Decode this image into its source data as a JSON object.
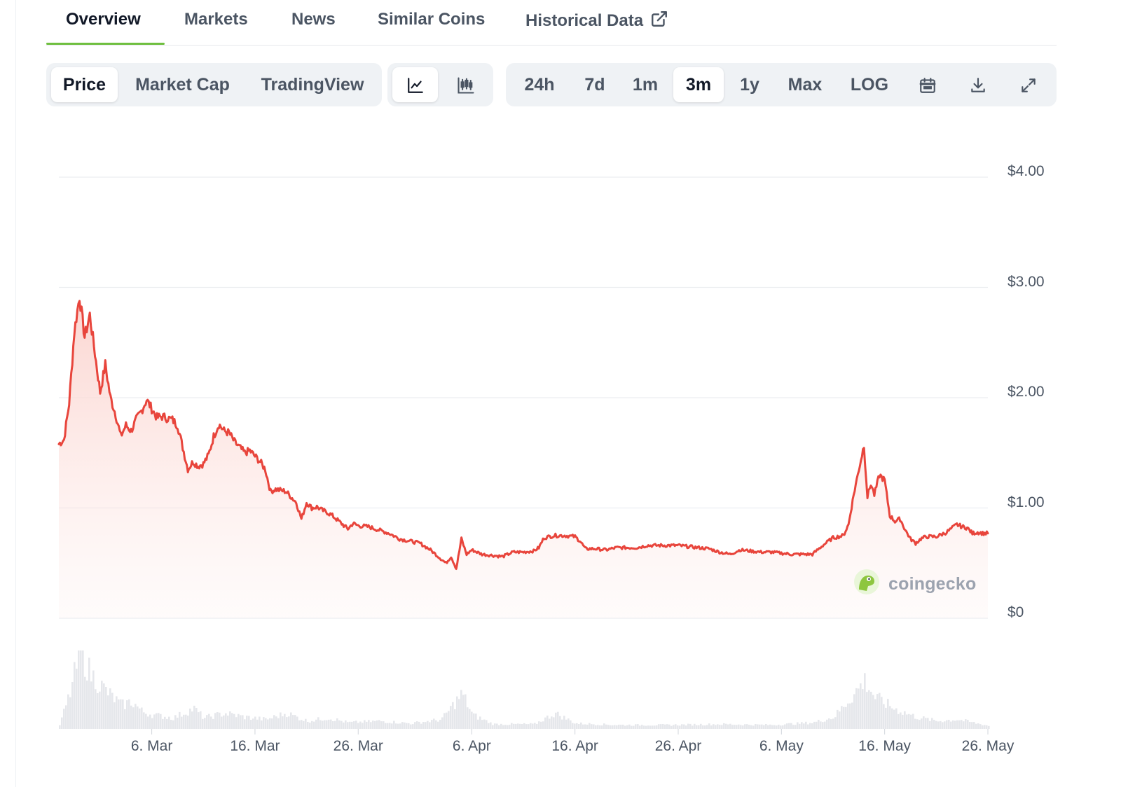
{
  "tabs": [
    {
      "label": "Overview",
      "active": true
    },
    {
      "label": "Markets"
    },
    {
      "label": "News"
    },
    {
      "label": "Similar Coins"
    },
    {
      "label": "Historical Data",
      "icon": "external-link-icon"
    }
  ],
  "toolbar": {
    "metrics": [
      {
        "label": "Price",
        "active": true
      },
      {
        "label": "Market Cap"
      },
      {
        "label": "TradingView"
      }
    ],
    "chart_types": [
      {
        "icon": "line-chart-icon",
        "active": true
      },
      {
        "icon": "candlestick-icon"
      }
    ],
    "ranges": [
      {
        "label": "24h"
      },
      {
        "label": "7d"
      },
      {
        "label": "1m"
      },
      {
        "label": "3m",
        "active": true
      },
      {
        "label": "1y"
      },
      {
        "label": "Max"
      },
      {
        "label": "LOG"
      }
    ],
    "actions": [
      {
        "icon": "calendar-icon"
      },
      {
        "icon": "download-icon"
      },
      {
        "icon": "expand-icon"
      }
    ]
  },
  "watermark": "coingecko",
  "chart_data": {
    "type": "line",
    "line_color": "#e8453c",
    "fill_color": "#fde2df",
    "volume_color": "#e5e7eb",
    "ylim": [
      0,
      4.0
    ],
    "y_ticks": [
      "$4.00",
      "$3.00",
      "$2.00",
      "$1.00",
      "$0"
    ],
    "y_tick_values": [
      4,
      3,
      2,
      1,
      0
    ],
    "xlim": [
      "2024-02-26",
      "2024-05-26"
    ],
    "x_ticks": [
      "6. Mar",
      "16. Mar",
      "26. Mar",
      "6. Apr",
      "16. Apr",
      "26. Apr",
      "6. May",
      "16. May",
      "26. May"
    ],
    "x_tick_dates": [
      "2024-03-06",
      "2024-03-16",
      "2024-03-26",
      "2024-04-06",
      "2024-04-16",
      "2024-04-26",
      "2024-05-06",
      "2024-05-16",
      "2024-05-26"
    ],
    "grid": true,
    "price": [
      [
        "2024-02-26",
        1.58
      ],
      [
        "2024-02-26T12",
        1.62
      ],
      [
        "2024-02-27",
        1.95
      ],
      [
        "2024-02-27T12",
        2.6
      ],
      [
        "2024-02-28",
        2.92
      ],
      [
        "2024-02-28T12",
        2.55
      ],
      [
        "2024-02-29",
        2.75
      ],
      [
        "2024-02-29T12",
        2.4
      ],
      [
        "2024-03-01",
        2.05
      ],
      [
        "2024-03-01T12",
        2.3
      ],
      [
        "2024-03-02",
        2.0
      ],
      [
        "2024-03-02T12",
        1.85
      ],
      [
        "2024-03-03",
        1.65
      ],
      [
        "2024-03-03T12",
        1.75
      ],
      [
        "2024-03-04",
        1.7
      ],
      [
        "2024-03-04T12",
        1.8
      ],
      [
        "2024-03-05",
        1.88
      ],
      [
        "2024-03-05T12",
        1.98
      ],
      [
        "2024-03-06",
        1.9
      ],
      [
        "2024-03-06T12",
        1.82
      ],
      [
        "2024-03-07",
        1.83
      ],
      [
        "2024-03-08",
        1.8
      ],
      [
        "2024-03-08T12",
        1.75
      ],
      [
        "2024-03-09",
        1.55
      ],
      [
        "2024-03-09T12",
        1.35
      ],
      [
        "2024-03-10",
        1.42
      ],
      [
        "2024-03-10T12",
        1.38
      ],
      [
        "2024-03-11",
        1.4
      ],
      [
        "2024-03-11T12",
        1.48
      ],
      [
        "2024-03-12",
        1.65
      ],
      [
        "2024-03-12T12",
        1.76
      ],
      [
        "2024-03-13",
        1.7
      ],
      [
        "2024-03-13T12",
        1.68
      ],
      [
        "2024-03-14",
        1.6
      ],
      [
        "2024-03-14T12",
        1.55
      ],
      [
        "2024-03-15",
        1.5
      ],
      [
        "2024-03-15T12",
        1.52
      ],
      [
        "2024-03-16",
        1.47
      ],
      [
        "2024-03-16T12",
        1.42
      ],
      [
        "2024-03-17",
        1.35
      ],
      [
        "2024-03-17T12",
        1.15
      ],
      [
        "2024-03-18",
        1.17
      ],
      [
        "2024-03-19",
        1.15
      ],
      [
        "2024-03-19T12",
        1.1
      ],
      [
        "2024-03-20",
        1.05
      ],
      [
        "2024-03-20T12",
        0.9
      ],
      [
        "2024-03-21",
        1.05
      ],
      [
        "2024-03-21T12",
        1.0
      ],
      [
        "2024-03-22",
        1.01
      ],
      [
        "2024-03-22T12",
        0.98
      ],
      [
        "2024-03-23",
        0.96
      ],
      [
        "2024-03-23T12",
        0.93
      ],
      [
        "2024-03-24",
        0.89
      ],
      [
        "2024-03-24T12",
        0.85
      ],
      [
        "2024-03-25",
        0.81
      ],
      [
        "2024-03-25T12",
        0.86
      ],
      [
        "2024-03-26",
        0.84
      ],
      [
        "2024-03-27",
        0.83
      ],
      [
        "2024-03-28",
        0.8
      ],
      [
        "2024-03-29",
        0.77
      ],
      [
        "2024-03-30",
        0.72
      ],
      [
        "2024-03-31",
        0.7
      ],
      [
        "2024-04-01",
        0.68
      ],
      [
        "2024-04-02",
        0.62
      ],
      [
        "2024-04-03",
        0.54
      ],
      [
        "2024-04-03T12",
        0.5
      ],
      [
        "2024-04-04",
        0.56
      ],
      [
        "2024-04-04T12",
        0.45
      ],
      [
        "2024-04-05",
        0.72
      ],
      [
        "2024-04-05T12",
        0.58
      ],
      [
        "2024-04-06",
        0.62
      ],
      [
        "2024-04-06T12",
        0.6
      ],
      [
        "2024-04-07",
        0.58
      ],
      [
        "2024-04-08",
        0.57
      ],
      [
        "2024-04-09",
        0.56
      ],
      [
        "2024-04-10",
        0.6
      ],
      [
        "2024-04-11",
        0.6
      ],
      [
        "2024-04-12",
        0.61
      ],
      [
        "2024-04-12T12",
        0.64
      ],
      [
        "2024-04-13",
        0.73
      ],
      [
        "2024-04-14",
        0.75
      ],
      [
        "2024-04-15",
        0.75
      ],
      [
        "2024-04-16",
        0.74
      ],
      [
        "2024-04-16T12",
        0.7
      ],
      [
        "2024-04-17",
        0.63
      ],
      [
        "2024-04-18",
        0.63
      ],
      [
        "2024-04-19",
        0.62
      ],
      [
        "2024-04-20",
        0.64
      ],
      [
        "2024-04-21",
        0.64
      ],
      [
        "2024-04-22",
        0.64
      ],
      [
        "2024-04-23",
        0.66
      ],
      [
        "2024-04-24",
        0.66
      ],
      [
        "2024-04-25",
        0.66
      ],
      [
        "2024-04-26",
        0.66
      ],
      [
        "2024-04-27",
        0.65
      ],
      [
        "2024-04-28",
        0.64
      ],
      [
        "2024-04-29",
        0.63
      ],
      [
        "2024-04-30",
        0.6
      ],
      [
        "2024-05-01",
        0.58
      ],
      [
        "2024-05-02",
        0.62
      ],
      [
        "2024-05-03",
        0.61
      ],
      [
        "2024-05-04",
        0.6
      ],
      [
        "2024-05-05",
        0.6
      ],
      [
        "2024-05-06",
        0.59
      ],
      [
        "2024-05-07",
        0.58
      ],
      [
        "2024-05-08",
        0.58
      ],
      [
        "2024-05-09",
        0.58
      ],
      [
        "2024-05-10",
        0.66
      ],
      [
        "2024-05-11",
        0.73
      ],
      [
        "2024-05-12",
        0.75
      ],
      [
        "2024-05-12T12",
        0.85
      ],
      [
        "2024-05-13",
        1.12
      ],
      [
        "2024-05-13T12",
        1.35
      ],
      [
        "2024-05-14",
        1.57
      ],
      [
        "2024-05-14T08",
        1.1
      ],
      [
        "2024-05-14T16",
        1.22
      ],
      [
        "2024-05-15",
        1.12
      ],
      [
        "2024-05-15T12",
        1.3
      ],
      [
        "2024-05-16",
        1.25
      ],
      [
        "2024-05-16T12",
        0.93
      ],
      [
        "2024-05-17",
        0.88
      ],
      [
        "2024-05-17T12",
        0.9
      ],
      [
        "2024-05-18",
        0.8
      ],
      [
        "2024-05-18T12",
        0.72
      ],
      [
        "2024-05-19",
        0.68
      ],
      [
        "2024-05-19T12",
        0.72
      ],
      [
        "2024-05-20",
        0.74
      ],
      [
        "2024-05-21",
        0.74
      ],
      [
        "2024-05-22",
        0.78
      ],
      [
        "2024-05-23",
        0.85
      ],
      [
        "2024-05-23T12",
        0.83
      ],
      [
        "2024-05-24",
        0.82
      ],
      [
        "2024-05-24T12",
        0.77
      ],
      [
        "2024-05-25",
        0.78
      ],
      [
        "2024-05-25T12",
        0.77
      ],
      [
        "2024-05-26",
        0.77
      ]
    ],
    "volume_relative": [
      [
        "2024-02-26",
        0.05
      ],
      [
        "2024-02-27",
        0.45
      ],
      [
        "2024-02-28",
        1.0
      ],
      [
        "2024-02-29",
        0.7
      ],
      [
        "2024-03-01",
        0.55
      ],
      [
        "2024-03-02",
        0.42
      ],
      [
        "2024-03-03",
        0.3
      ],
      [
        "2024-03-04",
        0.35
      ],
      [
        "2024-03-05",
        0.22
      ],
      [
        "2024-03-06",
        0.18
      ],
      [
        "2024-03-08",
        0.14
      ],
      [
        "2024-03-10",
        0.26
      ],
      [
        "2024-03-11",
        0.14
      ],
      [
        "2024-03-13",
        0.2
      ],
      [
        "2024-03-15",
        0.15
      ],
      [
        "2024-03-17",
        0.12
      ],
      [
        "2024-03-19",
        0.2
      ],
      [
        "2024-03-21",
        0.1
      ],
      [
        "2024-03-23",
        0.14
      ],
      [
        "2024-03-25",
        0.08
      ],
      [
        "2024-03-28",
        0.1
      ],
      [
        "2024-03-31",
        0.07
      ],
      [
        "2024-04-03",
        0.12
      ],
      [
        "2024-04-05",
        0.45
      ],
      [
        "2024-04-06",
        0.18
      ],
      [
        "2024-04-08",
        0.06
      ],
      [
        "2024-04-12",
        0.06
      ],
      [
        "2024-04-14",
        0.2
      ],
      [
        "2024-04-16",
        0.07
      ],
      [
        "2024-04-20",
        0.05
      ],
      [
        "2024-04-25",
        0.05
      ],
      [
        "2024-04-30",
        0.06
      ],
      [
        "2024-05-05",
        0.05
      ],
      [
        "2024-05-09",
        0.08
      ],
      [
        "2024-05-11",
        0.15
      ],
      [
        "2024-05-13",
        0.45
      ],
      [
        "2024-05-14",
        0.62
      ],
      [
        "2024-05-15",
        0.4
      ],
      [
        "2024-05-17",
        0.25
      ],
      [
        "2024-05-19",
        0.15
      ],
      [
        "2024-05-21",
        0.1
      ],
      [
        "2024-05-23",
        0.12
      ],
      [
        "2024-05-26",
        0.04
      ]
    ]
  }
}
